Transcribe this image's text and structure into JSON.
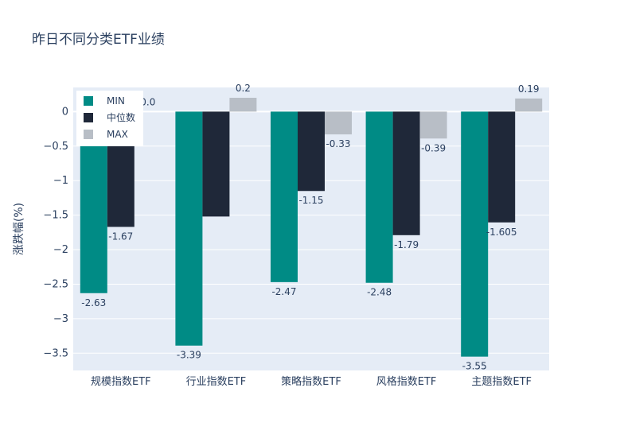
{
  "chart_data": {
    "type": "bar",
    "title": "昨日不同分类ETF业绩",
    "ylabel": "涨跌幅(%)",
    "xlabel": "",
    "categories": [
      "规模指数ETF",
      "行业指数ETF",
      "策略指数ETF",
      "风格指数ETF",
      "主题指数ETF"
    ],
    "series": [
      {
        "name": "MIN",
        "color": "#008b85",
        "values": [
          -2.63,
          -3.39,
          -2.47,
          -2.48,
          -3.55
        ],
        "labels": [
          "-2.63",
          "-3.39",
          "-2.47",
          "-2.48",
          "-3.55"
        ]
      },
      {
        "name": "中位数",
        "color": "#1f2839",
        "values": [
          -1.67,
          -1.52,
          -1.15,
          -1.79,
          -1.605
        ],
        "labels": [
          "-1.67",
          "",
          "-1.15",
          "-1.79",
          "-1.605"
        ]
      },
      {
        "name": "MAX",
        "color": "#b8bec6",
        "values": [
          0.0,
          0.2,
          -0.33,
          -0.39,
          0.19
        ],
        "labels": [
          "0.0",
          "0.2",
          "-0.33",
          "-0.39",
          "0.19"
        ]
      }
    ],
    "ylim": [
      -3.75,
      0.35
    ],
    "yticks": [
      0,
      -0.5,
      -1,
      -1.5,
      -2,
      -2.5,
      -3,
      -3.5
    ],
    "ytick_labels": [
      "0",
      "−0.5",
      "−1",
      "−1.5",
      "−2",
      "−2.5",
      "−3",
      "−3.5"
    ],
    "grid": true,
    "legend": "top-left"
  }
}
